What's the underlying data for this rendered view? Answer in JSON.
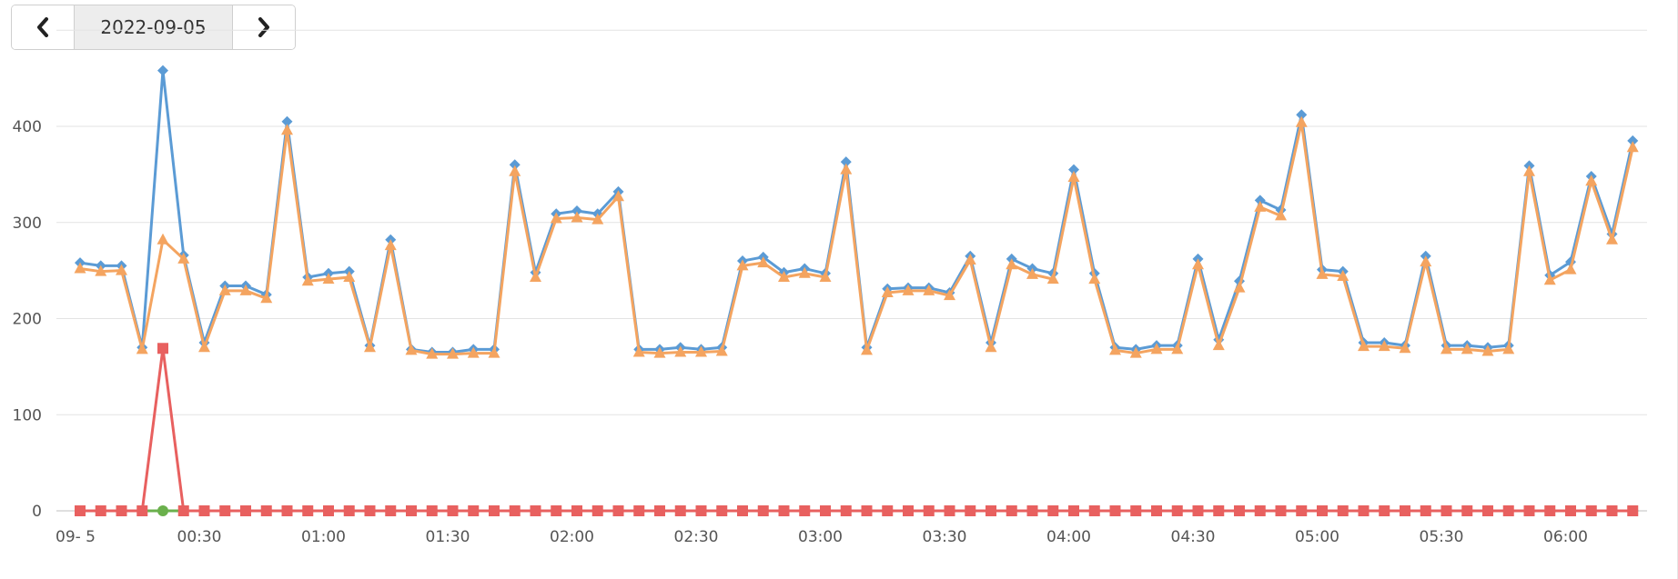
{
  "date_nav": {
    "date": "2022-09-05",
    "prev_icon": "chevron-left-icon",
    "next_icon": "chevron-right-icon"
  },
  "chart_data": {
    "type": "line",
    "ylim": [
      0,
      500
    ],
    "y_ticks": [
      0,
      100,
      200,
      300,
      400
    ],
    "x_tick_labels": [
      "09- 5",
      "00:30",
      "01:00",
      "01:30",
      "02:00",
      "02:30",
      "03:00",
      "03:30",
      "04:00",
      "04:30",
      "05:00",
      "05:30",
      "06:00"
    ],
    "grid": true,
    "series": [
      {
        "marker": "diamond",
        "color": "#5b9bd5",
        "values": [
          258,
          255,
          255,
          170,
          458,
          266,
          175,
          234,
          234,
          225,
          405,
          243,
          247,
          249,
          172,
          282,
          168,
          165,
          165,
          168,
          168,
          360,
          248,
          309,
          312,
          309,
          332,
          168,
          168,
          170,
          168,
          170,
          260,
          264,
          248,
          252,
          247,
          363,
          170,
          231,
          232,
          232,
          227,
          265,
          175,
          262,
          252,
          247,
          355,
          247,
          170,
          168,
          172,
          172,
          262,
          178,
          239,
          323,
          313,
          412,
          251,
          249,
          175,
          175,
          172,
          265,
          172,
          172,
          170,
          172,
          359,
          245,
          259,
          348,
          288,
          385
        ]
      },
      {
        "marker": "triangle",
        "color": "#f4a460",
        "values": [
          252,
          249,
          250,
          168,
          282,
          262,
          170,
          229,
          229,
          221,
          396,
          239,
          241,
          243,
          170,
          276,
          167,
          163,
          163,
          164,
          164,
          353,
          243,
          304,
          305,
          303,
          327,
          165,
          164,
          165,
          165,
          166,
          255,
          258,
          243,
          247,
          243,
          355,
          167,
          227,
          229,
          229,
          224,
          261,
          170,
          256,
          246,
          241,
          347,
          241,
          167,
          164,
          168,
          168,
          256,
          172,
          232,
          316,
          307,
          404,
          246,
          244,
          171,
          171,
          169,
          259,
          168,
          168,
          166,
          168,
          353,
          240,
          251,
          343,
          282,
          378
        ]
      },
      {
        "marker": "circle",
        "color": "#6ab04c",
        "values": [
          0,
          0,
          0,
          0,
          0,
          0,
          0,
          0,
          0,
          0,
          0,
          0,
          0,
          0,
          0,
          0,
          0,
          0,
          0,
          0,
          0,
          0,
          0,
          0,
          0,
          0,
          0,
          0,
          0,
          0,
          0,
          0,
          0,
          0,
          0,
          0,
          0,
          0,
          0,
          0,
          0,
          0,
          0,
          0,
          0,
          0,
          0,
          0,
          0,
          0,
          0,
          0,
          0,
          0,
          0,
          0,
          0,
          0,
          0,
          0,
          0,
          0,
          0,
          0,
          0,
          0,
          0,
          0,
          0,
          0,
          0,
          0,
          0,
          0,
          0,
          0
        ]
      },
      {
        "marker": "square",
        "color": "#e8605f",
        "values": [
          0,
          0,
          0,
          0,
          169,
          0,
          0,
          0,
          0,
          0,
          0,
          0,
          0,
          0,
          0,
          0,
          0,
          0,
          0,
          0,
          0,
          0,
          0,
          0,
          0,
          0,
          0,
          0,
          0,
          0,
          0,
          0,
          0,
          0,
          0,
          0,
          0,
          0,
          0,
          0,
          0,
          0,
          0,
          0,
          0,
          0,
          0,
          0,
          0,
          0,
          0,
          0,
          0,
          0,
          0,
          0,
          0,
          0,
          0,
          0,
          0,
          0,
          0,
          0,
          0,
          0,
          0,
          0,
          0,
          0,
          0,
          0,
          0,
          0,
          0,
          0
        ]
      }
    ]
  }
}
